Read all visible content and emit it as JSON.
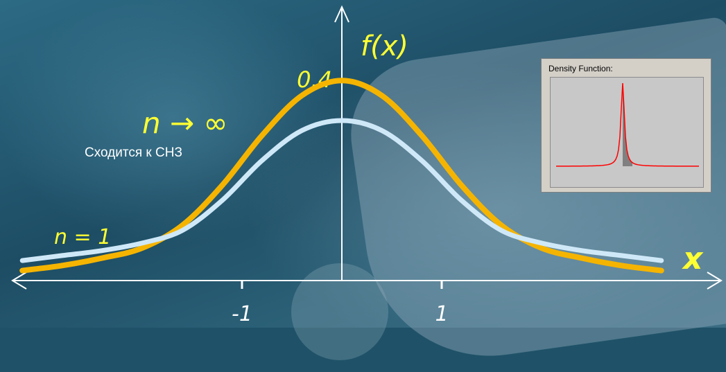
{
  "chart_data": {
    "type": "line",
    "title": "",
    "ylabel": "f(x)",
    "xlabel": "x",
    "xlim": [
      -3.4,
      3.4
    ],
    "ylim": [
      0,
      0.4
    ],
    "x_ticks": [
      -1,
      1
    ],
    "x_tick_labels": [
      "-1",
      "1"
    ],
    "y_ticks": [
      0.4
    ],
    "y_tick_labels": [
      "0.4"
    ],
    "series": [
      {
        "name": "n → ∞",
        "color": "#f5b400",
        "x": [
          -3.2,
          -2.8,
          -2.4,
          -2.0,
          -1.6,
          -1.2,
          -0.8,
          -0.4,
          0.0,
          0.4,
          0.8,
          1.2,
          1.6,
          2.0,
          2.4,
          2.8,
          3.2
        ],
        "y": [
          0.02,
          0.03,
          0.045,
          0.065,
          0.11,
          0.19,
          0.29,
          0.37,
          0.4,
          0.37,
          0.29,
          0.19,
          0.11,
          0.065,
          0.045,
          0.03,
          0.02
        ]
      },
      {
        "name": "n = 1",
        "color": "#cfe8f8",
        "x": [
          -3.2,
          -2.8,
          -2.4,
          -2.0,
          -1.6,
          -1.2,
          -0.8,
          -0.4,
          0.0,
          0.4,
          0.8,
          1.2,
          1.6,
          2.0,
          2.4,
          2.8,
          3.2
        ],
        "y": [
          0.04,
          0.05,
          0.06,
          0.075,
          0.1,
          0.16,
          0.24,
          0.3,
          0.32,
          0.3,
          0.24,
          0.16,
          0.1,
          0.075,
          0.06,
          0.05,
          0.04
        ]
      }
    ],
    "annotations": {
      "limit_label": "n → ∞",
      "limit_caption": "Сходится к СНЗ",
      "base_label": "n = 1"
    }
  },
  "inset": {
    "title": "Density Function:",
    "line_color": "#ff0000",
    "fill_color": "#808080"
  }
}
